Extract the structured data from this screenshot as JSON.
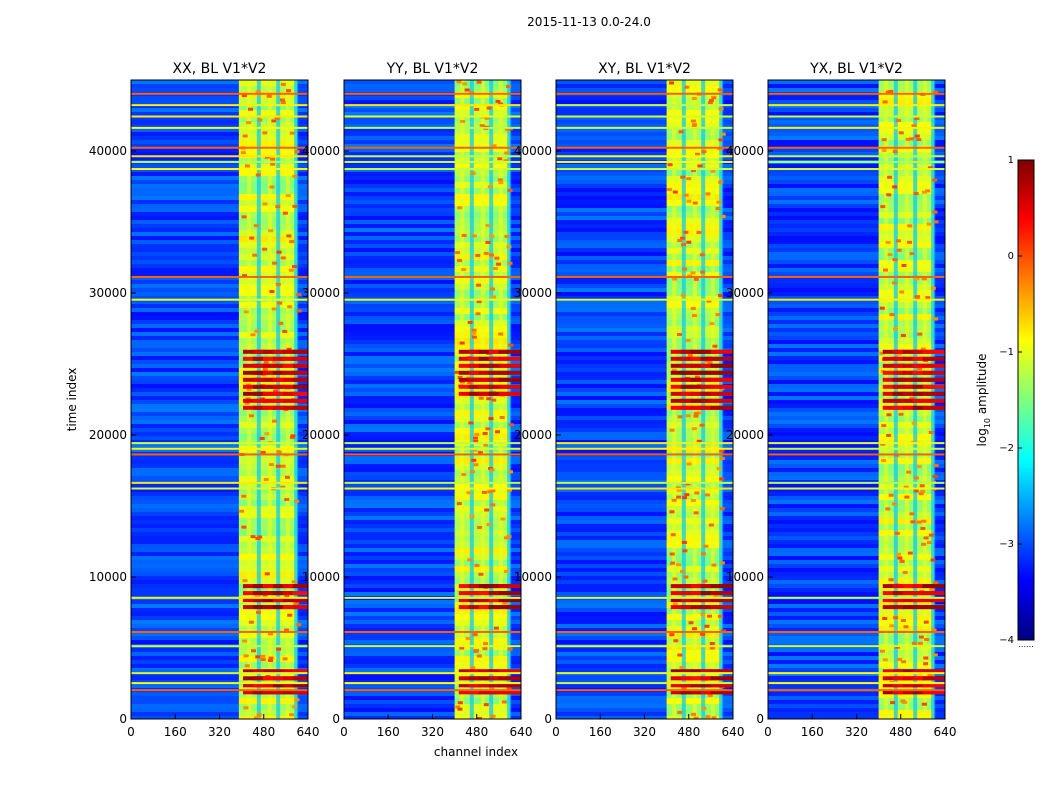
{
  "figure_title": "2015-11-13 0.0-24.0",
  "colors": {
    "background": "#ffffff",
    "low": "#0a1fd6",
    "mid": "#7df07d",
    "high": "#b00000",
    "jet_stops": [
      "#00007f",
      "#0000ff",
      "#007fff",
      "#00ffff",
      "#7fff7f",
      "#ffff00",
      "#ff7f00",
      "#ff0000",
      "#7f0000"
    ]
  },
  "chart_data": [
    {
      "type": "heatmap",
      "title": "XX, BL V1*V2",
      "xlabel": "",
      "ylabel": "time index",
      "xlim": [
        0,
        640
      ],
      "ylim": [
        0,
        45000
      ],
      "xticks": [
        0,
        160,
        320,
        480,
        640
      ],
      "yticks": [
        0,
        10000,
        20000,
        30000,
        40000
      ],
      "xtick_labels": [
        "0",
        "160",
        "320",
        "480",
        "640"
      ],
      "ytick_labels": [
        "0",
        "10000",
        "20000",
        "30000",
        "40000"
      ],
      "rfi_band_channels": [
        390,
        600
      ],
      "strong_rfi_time_blocks": [
        [
          2000,
          3500
        ],
        [
          8000,
          9500
        ],
        [
          22000,
          26000
        ]
      ]
    },
    {
      "type": "heatmap",
      "title": "YY, BL V1*V2",
      "xlabel": "channel index",
      "ylabel": "",
      "xlim": [
        0,
        640
      ],
      "ylim": [
        0,
        45000
      ],
      "xticks": [
        0,
        160,
        320,
        480,
        640
      ],
      "yticks": [
        0,
        10000,
        20000,
        30000,
        40000
      ],
      "xtick_labels": [
        "0",
        "160",
        "320",
        "480",
        "640"
      ],
      "ytick_labels": [
        "0",
        "10000",
        "20000",
        "30000",
        "40000"
      ],
      "rfi_band_channels": [
        400,
        600
      ],
      "strong_rfi_time_blocks": [
        [
          2000,
          3500
        ],
        [
          8000,
          9500
        ],
        [
          23000,
          26000
        ]
      ]
    },
    {
      "type": "heatmap",
      "title": "XY, BL V1*V2",
      "xlabel": "",
      "ylabel": "",
      "xlim": [
        0,
        640
      ],
      "ylim": [
        0,
        45000
      ],
      "xticks": [
        0,
        160,
        320,
        480,
        640
      ],
      "yticks": [
        0,
        10000,
        20000,
        30000,
        40000
      ],
      "xtick_labels": [
        "0",
        "160",
        "320",
        "480",
        "640"
      ],
      "ytick_labels": [
        "0",
        "10000",
        "20000",
        "30000",
        "40000"
      ],
      "rfi_band_channels": [
        400,
        600
      ],
      "strong_rfi_time_blocks": [
        [
          2000,
          3500
        ],
        [
          8000,
          9500
        ],
        [
          22000,
          26000
        ]
      ]
    },
    {
      "type": "heatmap",
      "title": "YX, BL V1*V2",
      "xlabel": "",
      "ylabel": "",
      "xlim": [
        0,
        640
      ],
      "ylim": [
        0,
        45000
      ],
      "xticks": [
        0,
        160,
        320,
        480,
        640
      ],
      "yticks": [
        0,
        10000,
        20000,
        30000,
        40000
      ],
      "xtick_labels": [
        "0",
        "160",
        "320",
        "480",
        "640"
      ],
      "ytick_labels": [
        "0",
        "10000",
        "20000",
        "30000",
        "40000"
      ],
      "rfi_band_channels": [
        400,
        600
      ],
      "strong_rfi_time_blocks": [
        [
          2000,
          3500
        ],
        [
          8000,
          9500
        ],
        [
          22000,
          26000
        ]
      ]
    }
  ],
  "colorbar": {
    "label": "log",
    "label_sub": "10",
    "label_suffix": " amplitude",
    "range": [
      -4,
      1
    ],
    "ticks": [
      1,
      0,
      -1,
      -2,
      -3,
      -4
    ],
    "tick_labels": [
      "1",
      "0",
      "−1",
      "−2",
      "−3",
      "−4"
    ],
    "bottom_note": "......"
  }
}
